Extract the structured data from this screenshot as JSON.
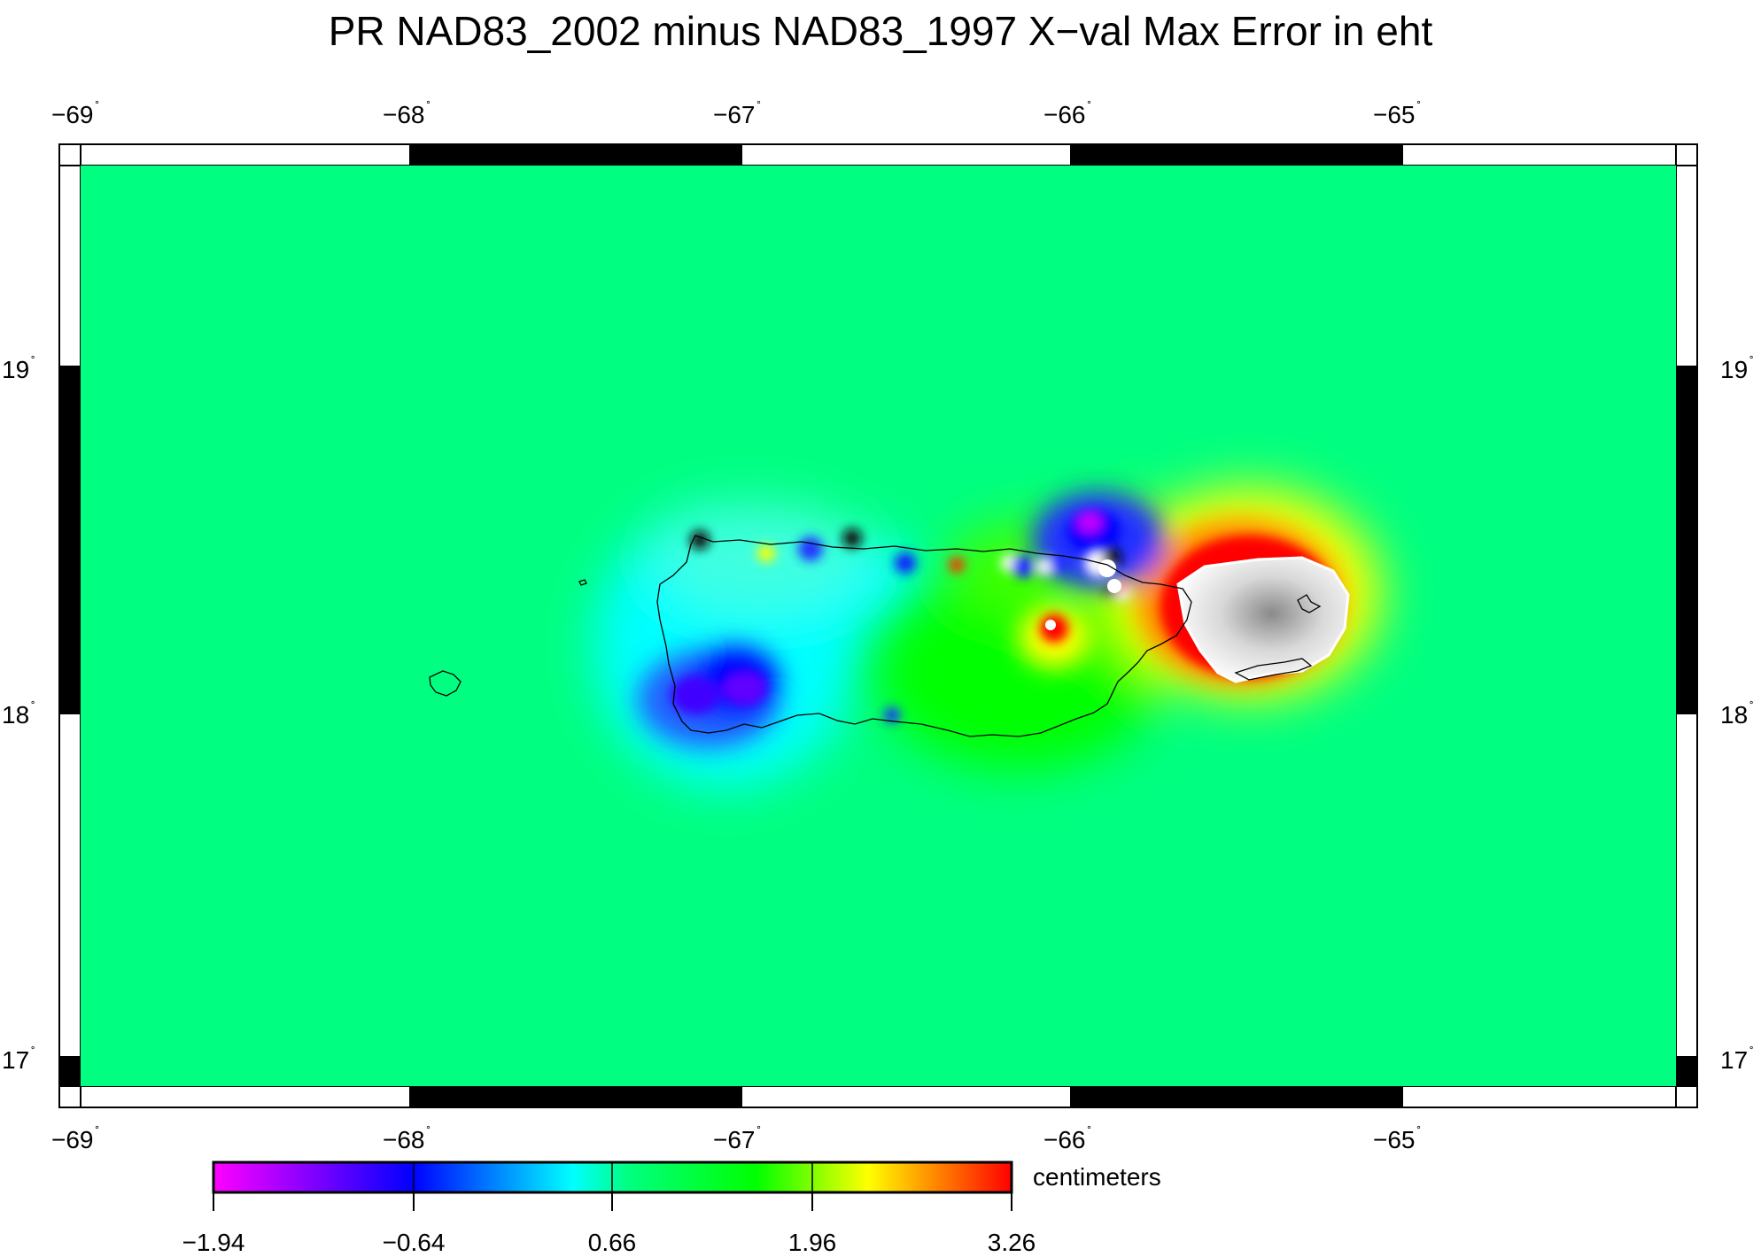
{
  "title": "PR NAD83_2002 minus NAD83_1997 X−val Max Error in eht",
  "map": {
    "lon_labels": [
      "−69",
      "−68",
      "−67",
      "−66",
      "−65"
    ],
    "lat_labels": [
      "19",
      "18",
      "17"
    ],
    "degree_mark": "˚",
    "background_color": "#00ff80"
  },
  "colorbar": {
    "unit": "centimeters",
    "tick_labels": [
      "−1.94",
      "−0.64",
      "0.66",
      "1.96",
      "3.26"
    ],
    "min": -1.94,
    "max": 3.26,
    "colors": [
      "#ff00ff",
      "#0000ff",
      "#00ffff",
      "#00ff80",
      "#00ff00",
      "#ffff00",
      "#ff0000"
    ]
  }
}
